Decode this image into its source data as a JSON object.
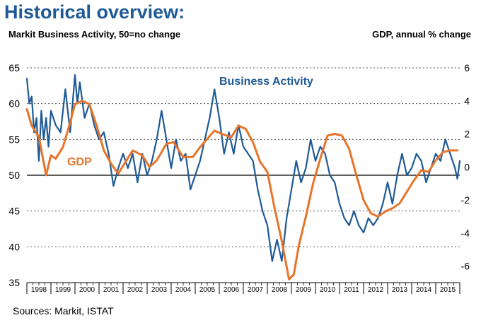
{
  "chart_data": {
    "type": "line",
    "title": "Historical overview:",
    "subtitle_left": "Markit Business Activity, 50=no change",
    "subtitle_right": "GDP, annual % change",
    "source": "Sources: Markit, ISTAT",
    "ylim_left": [
      35,
      65
    ],
    "ylim_right": [
      -7,
      6
    ],
    "yticks_left": [
      "35",
      "40",
      "45",
      "50",
      "55",
      "60",
      "65"
    ],
    "yticks_right": [
      "-6",
      "-4",
      "-2",
      "0",
      "2",
      "4",
      "6"
    ],
    "years": [
      "1998",
      "1999",
      "2000",
      "2001",
      "2002",
      "2003",
      "2004",
      "2005",
      "2006",
      "2007",
      "2008",
      "2009",
      "2010",
      "2011",
      "2012",
      "2013",
      "2014",
      "2015"
    ],
    "series": [
      {
        "name": "Business Activity",
        "axis": "left",
        "color": "#1f5a96",
        "x": [
          1998.0,
          1998.1,
          1998.2,
          1998.3,
          1998.4,
          1998.5,
          1998.6,
          1998.7,
          1998.8,
          1998.9,
          1999.0,
          1999.2,
          1999.4,
          1999.6,
          1999.8,
          1999.9,
          2000.0,
          2000.1,
          2000.2,
          2000.4,
          2000.6,
          2000.8,
          2001.0,
          2001.2,
          2001.4,
          2001.6,
          2001.8,
          2001.9,
          2002.0,
          2002.2,
          2002.4,
          2002.6,
          2002.8,
          2003.0,
          2003.2,
          2003.4,
          2003.6,
          2003.8,
          2004.0,
          2004.2,
          2004.4,
          2004.6,
          2004.8,
          2005.0,
          2005.2,
          2005.4,
          2005.6,
          2005.8,
          2006.0,
          2006.2,
          2006.4,
          2006.6,
          2006.8,
          2007.0,
          2007.2,
          2007.4,
          2007.6,
          2007.8,
          2008.0,
          2008.2,
          2008.4,
          2008.6,
          2008.8,
          2008.9,
          2009.0,
          2009.2,
          2009.4,
          2009.6,
          2009.8,
          2010.0,
          2010.2,
          2010.4,
          2010.6,
          2010.8,
          2011.0,
          2011.2,
          2011.4,
          2011.6,
          2011.8,
          2012.0,
          2012.2,
          2012.4,
          2012.6,
          2012.8,
          2013.0,
          2013.2,
          2013.4,
          2013.6,
          2013.8,
          2014.0,
          2014.2,
          2014.4,
          2014.6,
          2014.8,
          2015.0,
          2015.2,
          2015.4,
          2015.6,
          2015.8,
          2015.9,
          2016.0
        ],
        "values": [
          63.5,
          60,
          61,
          56,
          58,
          52,
          59,
          55,
          58,
          54,
          59,
          57,
          56,
          62,
          56,
          60,
          64,
          60,
          63,
          58,
          60,
          57,
          55,
          56,
          53,
          48.5,
          51,
          52,
          53,
          51,
          53,
          49,
          53,
          50,
          52,
          55,
          59,
          55,
          51,
          55,
          52,
          53,
          48,
          50,
          52,
          55,
          58,
          62,
          58,
          53,
          56,
          53,
          57,
          54,
          53,
          52,
          48,
          45,
          43,
          38,
          41,
          38,
          44,
          46,
          48,
          52,
          49,
          51,
          55,
          52,
          54,
          53,
          50,
          49,
          46,
          44,
          43,
          45,
          43,
          42,
          44,
          43,
          44,
          46,
          49,
          46,
          50,
          53,
          50,
          51,
          53,
          52,
          49,
          51,
          53,
          52,
          55,
          53,
          51,
          49.5,
          52
        ]
      },
      {
        "name": "GDP",
        "axis": "right",
        "color": "#e8742a",
        "x": [
          1998.0,
          1998.2,
          1998.5,
          1998.8,
          1999.0,
          1999.2,
          1999.5,
          1999.8,
          2000.0,
          2000.3,
          2000.6,
          2000.9,
          2001.2,
          2001.5,
          2001.8,
          2002.1,
          2002.4,
          2002.8,
          2003.1,
          2003.4,
          2003.8,
          2004.1,
          2004.5,
          2004.9,
          2005.2,
          2005.5,
          2005.8,
          2006.1,
          2006.5,
          2006.8,
          2007.1,
          2007.4,
          2007.7,
          2008.0,
          2008.3,
          2008.6,
          2008.9,
          2009.1,
          2009.3,
          2009.6,
          2009.9,
          2010.2,
          2010.5,
          2010.8,
          2011.1,
          2011.4,
          2011.7,
          2012.0,
          2012.3,
          2012.6,
          2012.9,
          2013.2,
          2013.5,
          2013.8,
          2014.1,
          2014.4,
          2014.7,
          2015.0,
          2015.3,
          2015.6,
          2015.9
        ],
        "values": [
          3.5,
          2.5,
          1.8,
          -0.5,
          0.7,
          0.5,
          1.2,
          2.7,
          3.8,
          4,
          3.8,
          2.5,
          1.0,
          0.2,
          -0.4,
          0.3,
          1.0,
          0.7,
          0,
          0.4,
          1.4,
          1.5,
          0.6,
          0.6,
          1.2,
          1.7,
          2.2,
          2.0,
          1.8,
          2.5,
          2.3,
          1.5,
          0.3,
          -0.3,
          -2.5,
          -4.5,
          -6.8,
          -6.5,
          -4.8,
          -3.0,
          -1.0,
          0.5,
          1.9,
          2.0,
          1.9,
          1.1,
          -0.5,
          -2.0,
          -2.8,
          -3.0,
          -2.7,
          -2.5,
          -2.2,
          -1.5,
          -0.8,
          -0.2,
          -0.3,
          0.4,
          0.9,
          1.0,
          1.0
        ]
      }
    ],
    "annotations": [
      {
        "text": "Business Activity",
        "series": "Business Activity"
      },
      {
        "text": "GDP",
        "series": "GDP"
      }
    ],
    "reference_line": {
      "axis": "left",
      "value": 50
    }
  }
}
